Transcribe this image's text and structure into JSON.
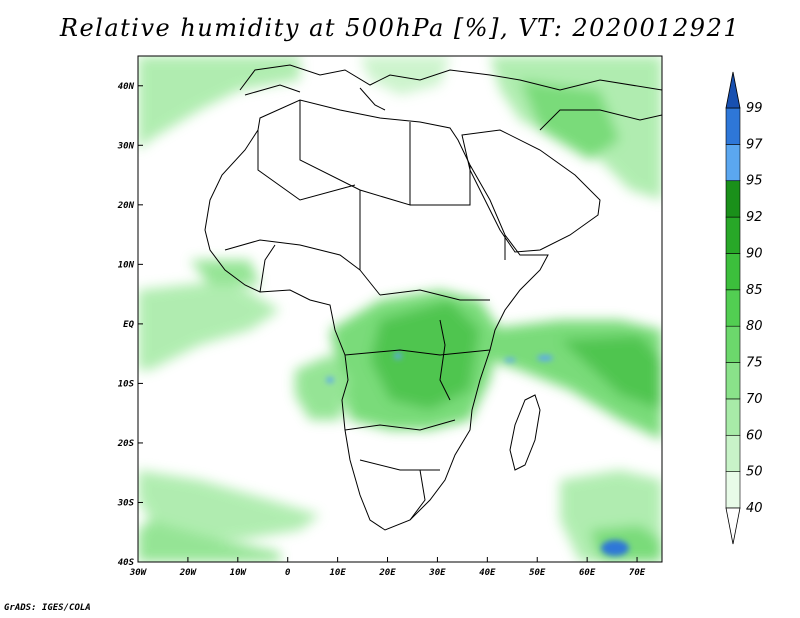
{
  "title": "Relative humidity at 500hPa [%], VT: 2020012921",
  "footer": "GrADS: IGES/COLA",
  "map": {
    "lon_range": [
      -30,
      75
    ],
    "lat_range": [
      -40,
      45
    ],
    "x_ticks": [
      "30W",
      "20W",
      "10W",
      "0",
      "10E",
      "20E",
      "30E",
      "40E",
      "50E",
      "60E",
      "70E"
    ],
    "y_ticks": [
      "40N",
      "30N",
      "20N",
      "10N",
      "EQ",
      "10S",
      "20S",
      "30S",
      "40S"
    ]
  },
  "colorbar": {
    "levels": [
      "40",
      "50",
      "60",
      "70",
      "75",
      "80",
      "85",
      "90",
      "92",
      "95",
      "97",
      "99"
    ],
    "colors": [
      "#ffffff",
      "#e8fbe8",
      "#c8f3c8",
      "#a8eba8",
      "#8ae28a",
      "#6cd86c",
      "#52ce52",
      "#3cbf3c",
      "#28a828",
      "#1a901a",
      "#5ba7f0",
      "#2e77d8",
      "#1850b0"
    ]
  }
}
